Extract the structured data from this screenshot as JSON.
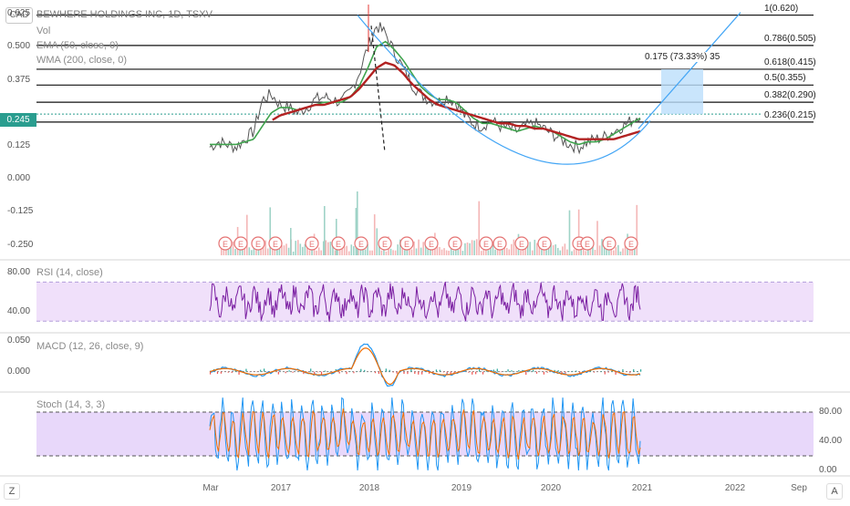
{
  "header": {
    "currency": "CAD",
    "title": "BEWHERE HOLDINGS INC, 1D, TSXV",
    "indicators": [
      "Vol",
      "EMA (50, close, 0)",
      "WMA (200, close, 0)"
    ]
  },
  "price_badge": "0.245",
  "corner": {
    "left": "Z",
    "right": "A"
  },
  "colors": {
    "ema": "#3fa34d",
    "wma": "#b22222",
    "price": "#555555",
    "volume": "#9fd3c7",
    "rsi": "#7b1fa2",
    "rsi_band": "#f0e0fa",
    "macd": "#2196f3",
    "signal": "#ef6c00",
    "stoch_k": "#2196f3",
    "stoch_d": "#ef6c00",
    "stoch_band": "#e8d8fa",
    "arc": "#42a5f5",
    "range_box": "#bbdefb",
    "earnings": "#e57373",
    "badge": "#2a9d8f"
  },
  "chart_data": [
    {
      "type": "line",
      "name": "price",
      "x_ticks": [
        "Mar",
        "2017",
        "2018",
        "2019",
        "2020",
        "2021",
        "2022",
        "Sep"
      ],
      "y_ticks": [
        "0.625",
        "0.500",
        "0.375",
        "0.245",
        "0.125",
        "0.000",
        "-0.125",
        "-0.250"
      ],
      "ylim": [
        -0.3,
        0.66
      ],
      "close_series": [
        0.12,
        0.14,
        0.13,
        0.12,
        0.15,
        0.18,
        0.3,
        0.32,
        0.28,
        0.27,
        0.25,
        0.27,
        0.3,
        0.31,
        0.3,
        0.29,
        0.33,
        0.4,
        0.5,
        0.58,
        0.55,
        0.48,
        0.42,
        0.36,
        0.32,
        0.3,
        0.29,
        0.31,
        0.29,
        0.24,
        0.21,
        0.2,
        0.22,
        0.2,
        0.19,
        0.18,
        0.2,
        0.21,
        0.19,
        0.17,
        0.15,
        0.13,
        0.12,
        0.14,
        0.15,
        0.16,
        0.18,
        0.2,
        0.22,
        0.245
      ],
      "ema_series": [
        0.13,
        0.13,
        0.13,
        0.13,
        0.14,
        0.15,
        0.2,
        0.25,
        0.27,
        0.27,
        0.26,
        0.27,
        0.28,
        0.29,
        0.29,
        0.29,
        0.31,
        0.35,
        0.42,
        0.5,
        0.52,
        0.49,
        0.45,
        0.4,
        0.35,
        0.32,
        0.3,
        0.3,
        0.29,
        0.26,
        0.23,
        0.21,
        0.21,
        0.2,
        0.19,
        0.18,
        0.19,
        0.2,
        0.19,
        0.18,
        0.16,
        0.14,
        0.13,
        0.14,
        0.14,
        0.15,
        0.17,
        0.19,
        0.21,
        0.23
      ],
      "wma_series": [
        null,
        null,
        null,
        null,
        null,
        null,
        null,
        0.22,
        0.24,
        0.25,
        0.26,
        0.27,
        0.28,
        0.28,
        0.29,
        0.3,
        0.31,
        0.34,
        0.38,
        0.42,
        0.44,
        0.43,
        0.4,
        0.36,
        0.33,
        0.3,
        0.28,
        0.27,
        0.26,
        0.25,
        0.24,
        0.23,
        0.22,
        0.21,
        0.21,
        0.2,
        0.2,
        0.19,
        0.19,
        0.18,
        0.17,
        0.16,
        0.15,
        0.15,
        0.15,
        0.15,
        0.15,
        0.16,
        0.17,
        0.18
      ],
      "fib_levels": [
        {
          "label": "1(0.620)",
          "value": 0.62
        },
        {
          "label": "0.786(0.505)",
          "value": 0.505
        },
        {
          "label": "0.618(0.415)",
          "value": 0.415
        },
        {
          "label": "0.5(0.355)",
          "value": 0.355
        },
        {
          "label": "0.382(0.290)",
          "value": 0.29
        },
        {
          "label": "0.236(0.215)",
          "value": 0.215
        }
      ],
      "range_label": "0.175 (73.33%) 35",
      "earnings_marker": "E",
      "earnings_count": 18
    },
    {
      "type": "line",
      "name": "RSI",
      "title": "RSI (14, close)",
      "y_ticks": [
        "80.00",
        "40.00"
      ],
      "ylim": [
        20,
        90
      ],
      "bands": [
        70,
        30
      ]
    },
    {
      "type": "line",
      "name": "MACD",
      "title": "MACD (12, 26, close, 9)",
      "y_ticks": [
        "0.050",
        "0.000"
      ],
      "ylim": [
        -0.03,
        0.06
      ]
    },
    {
      "type": "line",
      "name": "Stoch",
      "title": "Stoch (14, 3, 3)",
      "y_ticks": [
        "80.00",
        "40.00",
        "0.00"
      ],
      "ylim": [
        -5,
        105
      ],
      "bands": [
        80,
        20
      ]
    }
  ]
}
